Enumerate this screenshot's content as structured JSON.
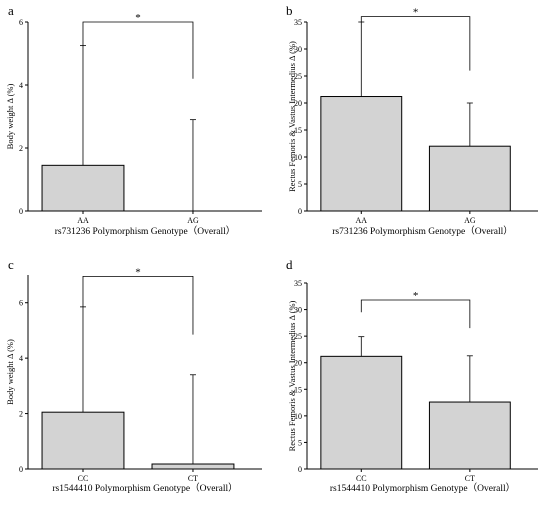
{
  "figure": {
    "bar_fill": "#d3d3d3",
    "bar_stroke": "#000000",
    "axis_color": "#000000"
  },
  "chart_data": [
    {
      "panel_label": "a",
      "type": "bar",
      "categories": [
        "AA",
        "AG"
      ],
      "values": [
        1.45,
        0.0
      ],
      "error_upper": [
        5.25,
        2.9
      ],
      "ylabel": "Body weight Δ (%)",
      "xlabel": "rs731236 Polymorphism Genotype（Overall）",
      "ylim": [
        0,
        6
      ],
      "yticks": [
        0,
        2,
        4,
        6
      ],
      "significance": {
        "label": "*",
        "between": [
          "AA",
          "AG"
        ],
        "level": 6.0,
        "left_tail_to": 5.25,
        "right_tail_to": 4.2
      }
    },
    {
      "panel_label": "b",
      "type": "bar",
      "categories": [
        "AA",
        "AG"
      ],
      "values": [
        21.2,
        12.0
      ],
      "error_upper": [
        35.0,
        20.0
      ],
      "ylabel": "Rectus Femoris & Vastus Intermedius Δ (%)",
      "xlabel": "rs731236 Polymorphism Genotype（Overall）",
      "ylim": [
        0,
        35
      ],
      "yticks": [
        0,
        5,
        10,
        15,
        20,
        25,
        30,
        35
      ],
      "significance": {
        "label": "*",
        "between": [
          "AA",
          "AG"
        ],
        "level": 36.0,
        "left_tail_to": 35.0,
        "right_tail_to": 26.0
      }
    },
    {
      "panel_label": "c",
      "type": "bar",
      "categories": [
        "CC",
        "CT"
      ],
      "values": [
        2.05,
        0.18
      ],
      "error_upper": [
        5.85,
        3.4
      ],
      "ylabel": "Body weight Δ (%)",
      "xlabel": "rs1544410 Polymorphism Genotype（Overall）",
      "ylim": [
        0,
        7
      ],
      "yticks": [
        0,
        2,
        4,
        6
      ],
      "significance": {
        "label": "*",
        "between": [
          "CC",
          "CT"
        ],
        "level": 6.95,
        "left_tail_to": 5.85,
        "right_tail_to": 4.85
      }
    },
    {
      "panel_label": "d",
      "type": "bar",
      "categories": [
        "CC",
        "CT"
      ],
      "values": [
        21.2,
        12.6
      ],
      "error_upper": [
        24.9,
        21.3
      ],
      "ylabel": "Rectus Femoris & Vastus Intermedius Δ (%)",
      "xlabel": "rs1544410 Polymorphism Genotype（Overall）",
      "ylim": [
        0,
        35
      ],
      "yticks": [
        0,
        5,
        10,
        15,
        20,
        25,
        30,
        35
      ],
      "significance": {
        "label": "*",
        "between": [
          "CC",
          "CT"
        ],
        "level": 31.8,
        "left_tail_to": 29.5,
        "right_tail_to": 26.5
      }
    }
  ]
}
